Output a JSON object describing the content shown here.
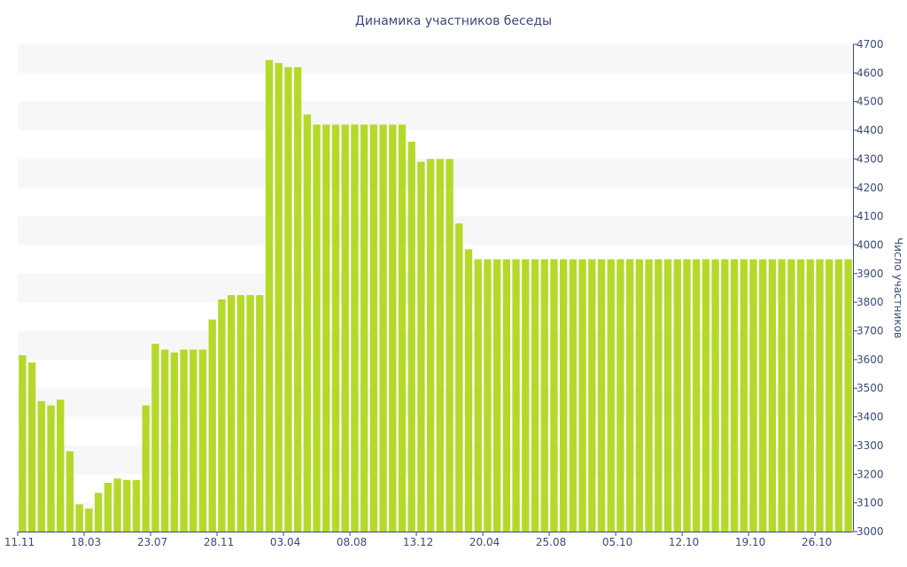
{
  "chart_data": {
    "type": "bar",
    "title": "Динамика участников беседы",
    "ylabel": "Число участников",
    "xlabel": "",
    "ylim": [
      3000,
      4700
    ],
    "y_ticks": [
      3000,
      3100,
      3200,
      3300,
      3400,
      3500,
      3600,
      3700,
      3800,
      3900,
      4000,
      4100,
      4200,
      4300,
      4400,
      4500,
      4600,
      4700
    ],
    "y_axis_side": "right",
    "x_tick_labels": [
      {
        "index": 0,
        "label": "11.11"
      },
      {
        "index": 7,
        "label": "18.03"
      },
      {
        "index": 14,
        "label": "23.07"
      },
      {
        "index": 21,
        "label": "28.11"
      },
      {
        "index": 28,
        "label": "03.04"
      },
      {
        "index": 35,
        "label": "08.08"
      },
      {
        "index": 42,
        "label": "13.12"
      },
      {
        "index": 49,
        "label": "20.04"
      },
      {
        "index": 56,
        "label": "25.08"
      },
      {
        "index": 63,
        "label": "05.10"
      },
      {
        "index": 70,
        "label": "12.10"
      },
      {
        "index": 77,
        "label": "19.10"
      },
      {
        "index": 84,
        "label": "26.10"
      }
    ],
    "grid": "alternating-bands",
    "colors": {
      "bar": "#b5d92b",
      "band": "#f7f7f7",
      "text": "#3b4a78",
      "axis": "#3b4a78"
    },
    "values": [
      3615,
      3590,
      3455,
      3440,
      3460,
      3280,
      3095,
      3080,
      3135,
      3170,
      3185,
      3180,
      3180,
      3440,
      3655,
      3635,
      3625,
      3635,
      3635,
      3635,
      3740,
      3810,
      3825,
      3825,
      3825,
      3825,
      4645,
      4635,
      4620,
      4620,
      4455,
      4420,
      4420,
      4420,
      4420,
      4420,
      4420,
      4420,
      4420,
      4420,
      4420,
      4360,
      4290,
      4300,
      4300,
      4300,
      4075,
      3985,
      3950,
      3950,
      3950,
      3950,
      3950,
      3950,
      3950,
      3950,
      3950,
      3950,
      3950,
      3950,
      3950,
      3950,
      3950,
      3950,
      3950,
      3950,
      3950,
      3950,
      3950,
      3950,
      3950,
      3950,
      3950,
      3950,
      3950,
      3950,
      3950,
      3950,
      3950,
      3950,
      3950,
      3950,
      3950,
      3950,
      3950,
      3950,
      3950,
      3950
    ]
  }
}
